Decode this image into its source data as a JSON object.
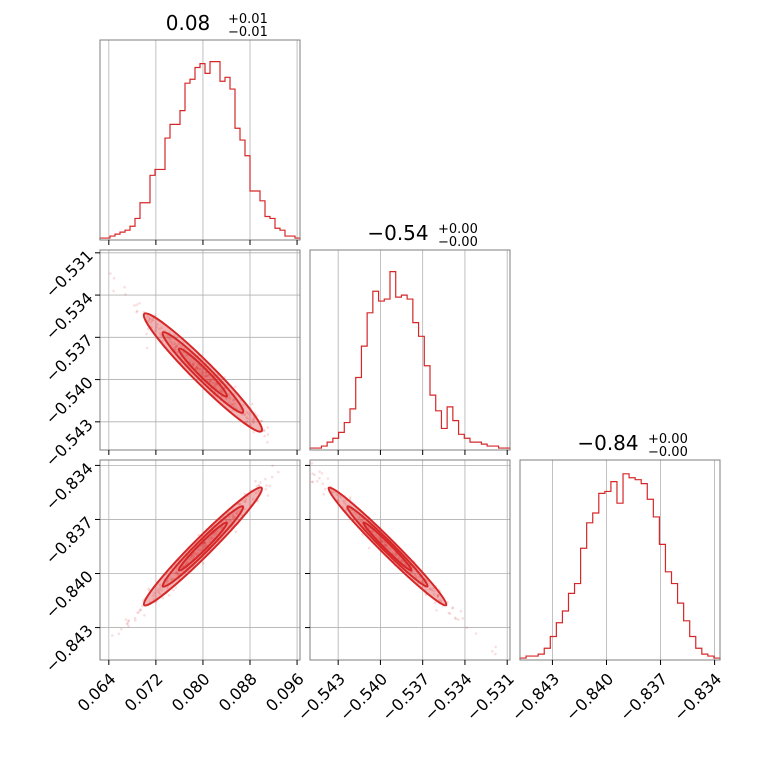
{
  "chart_data": {
    "type": "corner",
    "color": "#d62728",
    "parameters": [
      {
        "title_value": "0.08",
        "title_plus": "+0.01",
        "title_minus": "−0.01",
        "mean": 0.08,
        "range": [
          0.0625,
          0.0965
        ],
        "ticks": [
          0.064,
          0.072,
          0.08,
          0.088,
          0.096
        ],
        "tick_labels": [
          "0.064",
          "0.072",
          "0.080",
          "0.088",
          "0.096"
        ],
        "hist_bins": [
          0.01,
          0.01,
          0.02,
          0.03,
          0.04,
          0.05,
          0.07,
          0.11,
          0.19,
          0.19,
          0.33,
          0.36,
          0.36,
          0.52,
          0.59,
          0.59,
          0.66,
          0.8,
          0.82,
          0.88,
          0.9,
          0.85,
          0.91,
          0.91,
          0.81,
          0.83,
          0.77,
          0.57,
          0.51,
          0.43,
          0.25,
          0.25,
          0.2,
          0.12,
          0.11,
          0.06,
          0.05,
          0.02,
          0.02,
          0.01
        ]
      },
      {
        "title_value": "−0.54",
        "title_plus": "+0.00",
        "title_minus": "−0.00",
        "mean": -0.5395,
        "range": [
          -0.545,
          -0.5308
        ],
        "ticks": [
          -0.543,
          -0.54,
          -0.537,
          -0.534,
          -0.531
        ],
        "tick_labels": [
          "−0.543",
          "−0.540",
          "−0.537",
          "−0.534",
          "−0.531"
        ],
        "hist_bins": [
          0.01,
          0.01,
          0.02,
          0.04,
          0.06,
          0.09,
          0.14,
          0.21,
          0.37,
          0.53,
          0.7,
          0.81,
          0.76,
          0.77,
          0.91,
          0.78,
          0.79,
          0.77,
          0.65,
          0.58,
          0.43,
          0.28,
          0.2,
          0.11,
          0.22,
          0.15,
          0.08,
          0.06,
          0.04,
          0.04,
          0.03,
          0.02,
          0.02,
          0.01,
          0.01
        ]
      },
      {
        "title_value": "−0.84",
        "title_plus": "+0.00",
        "title_minus": "−0.00",
        "mean": -0.8385,
        "range": [
          -0.8448,
          -0.8337
        ],
        "ticks": [
          -0.843,
          -0.84,
          -0.837,
          -0.834
        ],
        "tick_labels": [
          "−0.843",
          "−0.840",
          "−0.837",
          "−0.834"
        ],
        "hist_bins": [
          0.01,
          0.02,
          0.02,
          0.03,
          0.06,
          0.12,
          0.19,
          0.25,
          0.34,
          0.39,
          0.57,
          0.7,
          0.75,
          0.85,
          0.86,
          0.91,
          0.8,
          0.95,
          0.93,
          0.92,
          0.9,
          0.82,
          0.73,
          0.59,
          0.45,
          0.39,
          0.29,
          0.2,
          0.12,
          0.06,
          0.03,
          0.02,
          0.01
        ]
      }
    ],
    "correlations": [
      {
        "pair": [
          0,
          1
        ],
        "rho": -0.98
      },
      {
        "pair": [
          0,
          2
        ],
        "rho": 0.985
      },
      {
        "pair": [
          1,
          2
        ],
        "rho": -0.99
      }
    ],
    "grid": true
  }
}
